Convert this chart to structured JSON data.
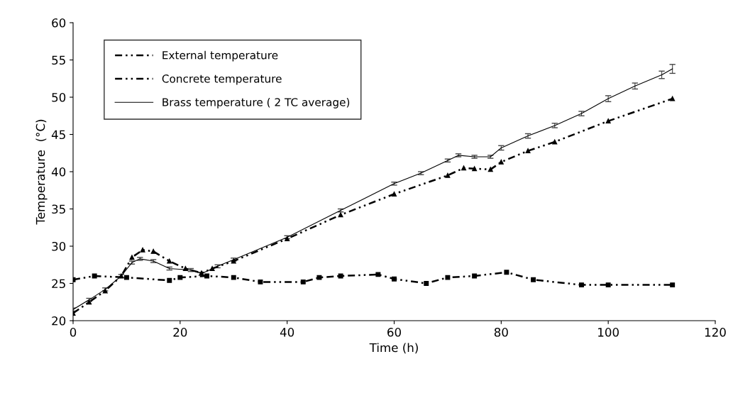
{
  "chart_data": {
    "type": "line",
    "xlabel": "Time (h)",
    "ylabel": "Temperature  (°C)",
    "xlim": [
      0,
      120
    ],
    "xticks": [
      0,
      20,
      40,
      60,
      80,
      100,
      120
    ],
    "ylim": [
      20,
      60
    ],
    "yticks": [
      20,
      25,
      30,
      35,
      40,
      45,
      50,
      55,
      60
    ],
    "grid": false,
    "legend": "top left",
    "series": [
      {
        "name": "External temperature",
        "color": "#000000",
        "marker": "square",
        "line_style": "dashed",
        "x": [
          0,
          4,
          10,
          18,
          20,
          25,
          30,
          35,
          43,
          46,
          50,
          57,
          60,
          66,
          70,
          75,
          81,
          86,
          95,
          100,
          112
        ],
        "values": [
          25.5,
          26.0,
          25.8,
          25.4,
          25.8,
          26.0,
          25.8,
          25.2,
          25.2,
          25.8,
          26.0,
          26.2,
          25.6,
          25.0,
          25.8,
          26.0,
          26.5,
          25.5,
          24.8,
          24.8,
          24.8
        ]
      },
      {
        "name": "Concrete temperature",
        "color": "#000000",
        "marker": "triangle",
        "line_style": "dashed",
        "x": [
          0,
          3,
          6,
          9,
          11,
          13,
          15,
          18,
          21,
          24,
          26,
          30,
          40,
          50,
          60,
          70,
          73,
          75,
          78,
          80,
          85,
          90,
          100,
          112
        ],
        "values": [
          21.0,
          22.5,
          24.0,
          26.0,
          28.5,
          29.5,
          29.3,
          28.0,
          27.0,
          26.4,
          27.0,
          28.0,
          31.0,
          34.2,
          37.0,
          39.5,
          40.5,
          40.4,
          40.3,
          41.3,
          42.8,
          44.0,
          46.8,
          49.8
        ]
      },
      {
        "name": "Brass temperature ( 2 TC average)",
        "color": "#000000",
        "marker": "none",
        "line_style": "solid",
        "x": [
          0,
          3,
          6,
          9,
          11,
          12.5,
          15,
          18,
          22,
          24,
          27,
          30,
          40,
          50,
          60,
          65,
          70,
          72,
          75,
          78,
          80,
          85,
          90,
          95,
          100,
          105,
          110,
          112
        ],
        "values": [
          21.5,
          22.8,
          24.2,
          26.0,
          27.8,
          28.3,
          28.0,
          27.0,
          26.8,
          26.3,
          27.3,
          28.2,
          31.2,
          34.8,
          38.4,
          39.8,
          41.5,
          42.2,
          42.0,
          42.0,
          43.2,
          44.8,
          46.2,
          47.8,
          49.8,
          51.5,
          53.0,
          53.8
        ],
        "errors": [
          0.2,
          0.2,
          0.2,
          0.2,
          0.2,
          0.2,
          0.2,
          0.2,
          0.2,
          0.2,
          0.2,
          0.2,
          0.2,
          0.2,
          0.2,
          0.2,
          0.2,
          0.2,
          0.2,
          0.2,
          0.3,
          0.3,
          0.3,
          0.3,
          0.4,
          0.4,
          0.5,
          0.6
        ]
      }
    ]
  }
}
